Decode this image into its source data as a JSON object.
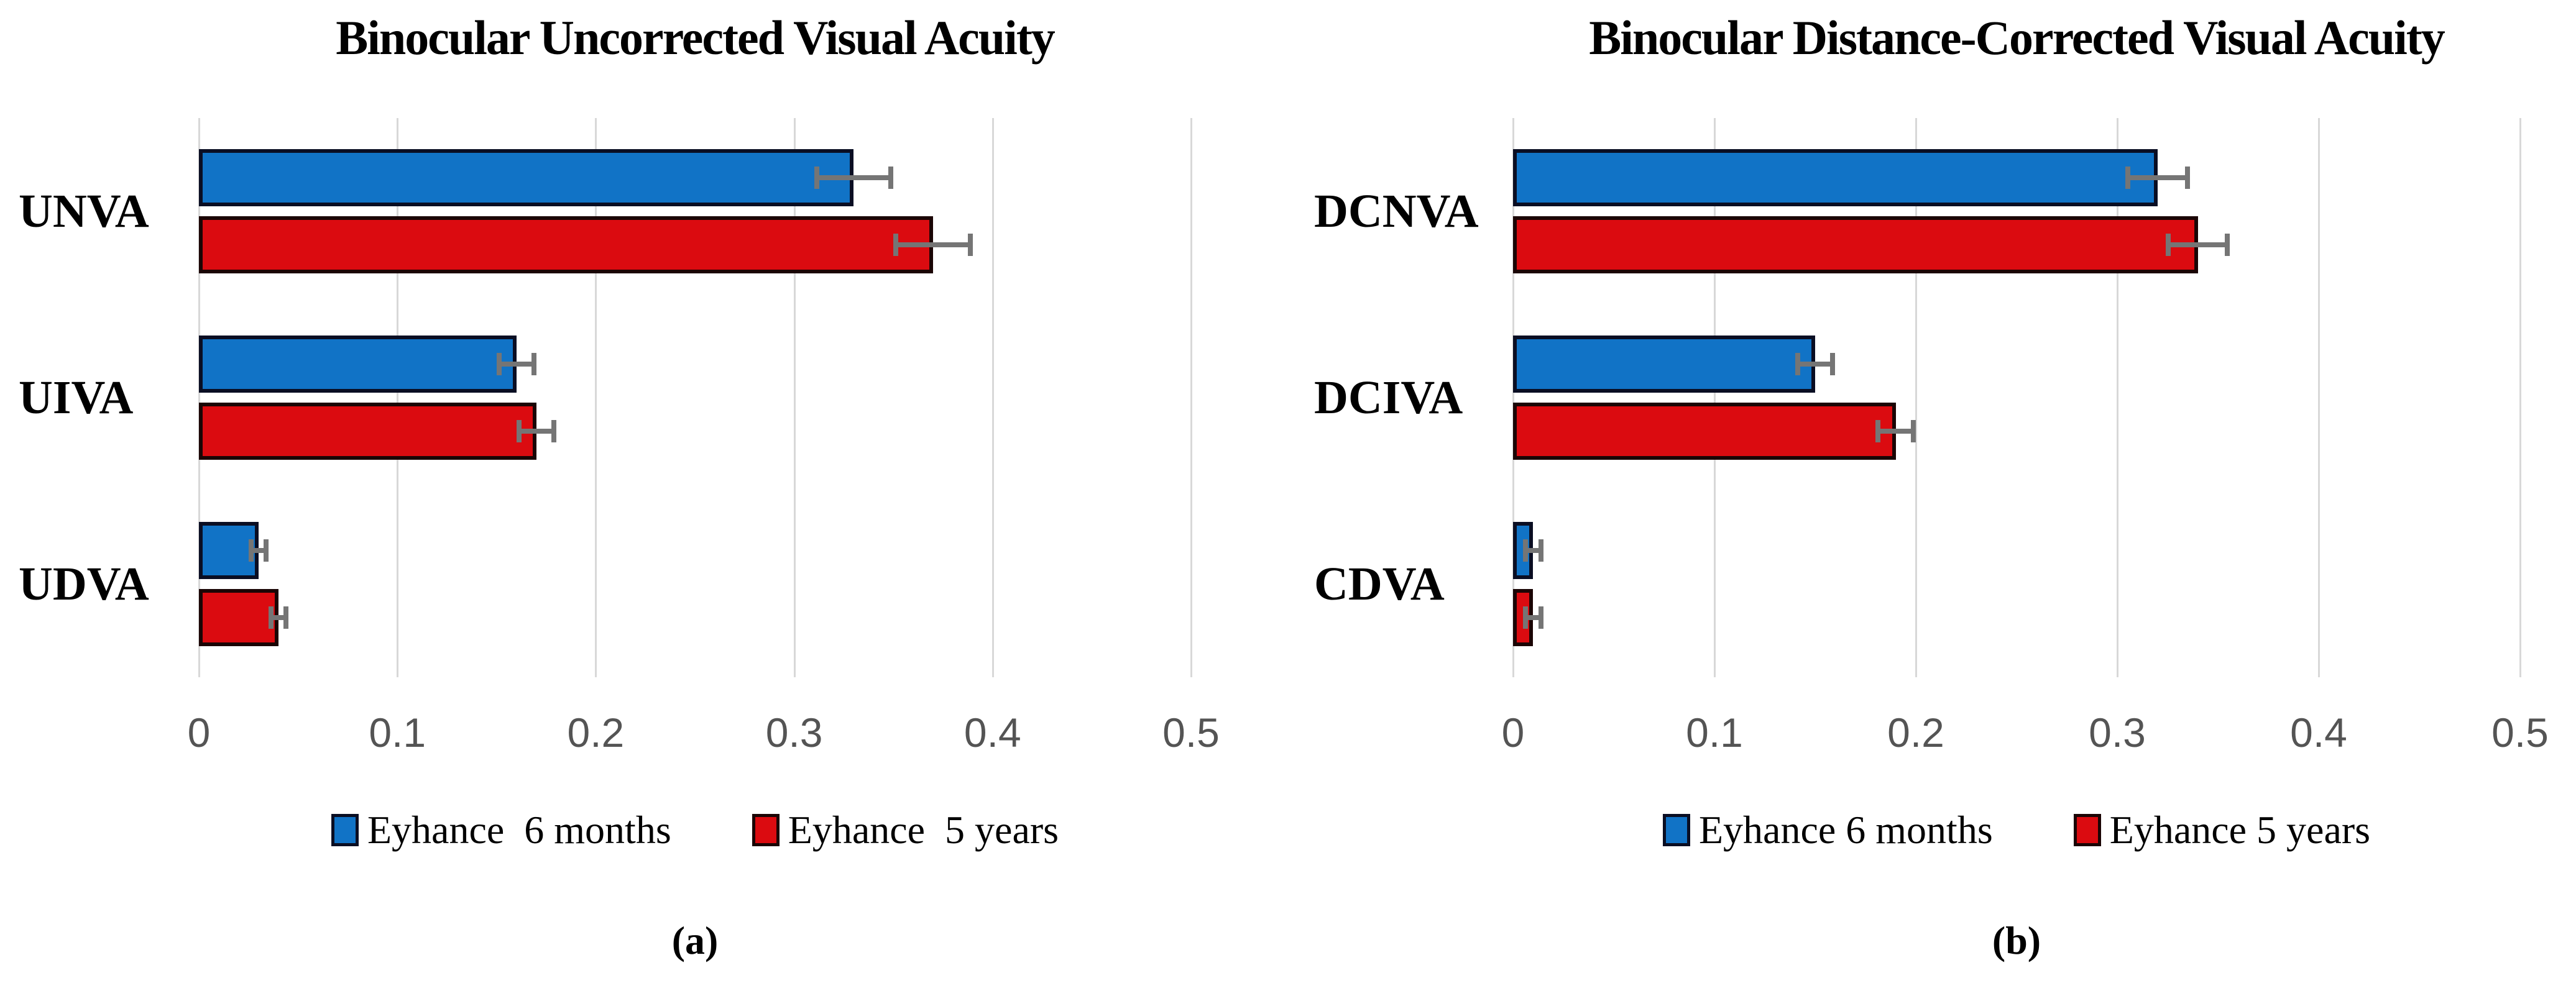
{
  "colors": {
    "series_blue_fill": "#1173C6",
    "series_blue_border": "#0A0E23",
    "series_red_fill": "#DB0B10",
    "series_red_border": "#1B0505",
    "gridline": "#D8D8D8",
    "tick_label_text": "#545454",
    "error_bar": "#757575",
    "title_text": "#000000"
  },
  "chart_data": [
    {
      "type": "bar",
      "orientation": "horizontal",
      "title": "Binocular Uncorrected Visual Acuity",
      "caption": "(a)",
      "categories": [
        "UNVA",
        "UIVA",
        "UDVA"
      ],
      "series": [
        {
          "name": "Eyhance  6 months",
          "color_key": "blue",
          "values": [
            0.33,
            0.16,
            0.03
          ],
          "errors": [
            0.02,
            0.01,
            0.005
          ]
        },
        {
          "name": "Eyhance  5 years",
          "color_key": "red",
          "values": [
            0.37,
            0.17,
            0.04
          ],
          "errors": [
            0.02,
            0.01,
            0.005
          ]
        }
      ],
      "xlabel": "",
      "xlim": [
        0,
        0.5
      ],
      "xticks": [
        "0",
        "0.1",
        "0.2",
        "0.3",
        "0.4",
        "0.5"
      ],
      "grid": true,
      "legend_position": "bottom"
    },
    {
      "type": "bar",
      "orientation": "horizontal",
      "title": "Binocular Distance-Corrected Visual Acuity",
      "caption": "(b)",
      "categories": [
        "DCNVA",
        "DCIVA",
        "CDVA"
      ],
      "series": [
        {
          "name": "Eyhance 6 months",
          "color_key": "blue",
          "values": [
            0.32,
            0.15,
            0.01
          ],
          "errors": [
            0.016,
            0.01,
            0.005
          ]
        },
        {
          "name": "Eyhance 5 years",
          "color_key": "red",
          "values": [
            0.34,
            0.19,
            0.01
          ],
          "errors": [
            0.016,
            0.01,
            0.005
          ]
        }
      ],
      "xlabel": "",
      "xlim": [
        0,
        0.5
      ],
      "xticks": [
        "0",
        "0.1",
        "0.2",
        "0.3",
        "0.4",
        "0.5"
      ],
      "grid": true,
      "legend_position": "bottom"
    }
  ]
}
